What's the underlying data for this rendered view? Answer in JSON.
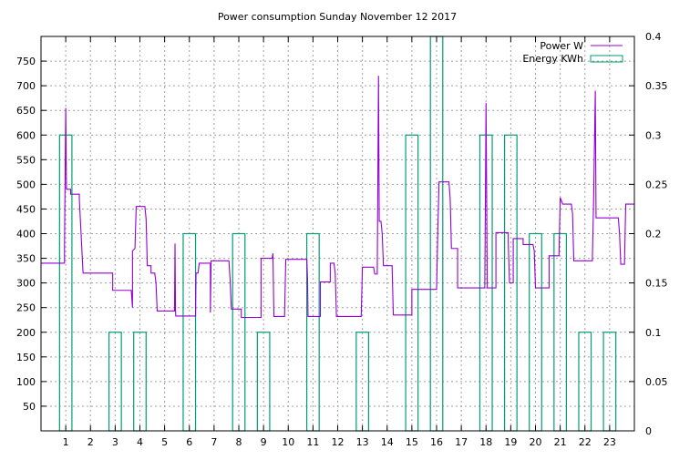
{
  "colors": {
    "power": "#9400d3",
    "energy": "#009e73",
    "grid": "#a0a0a0",
    "frame": "#000000",
    "background": "#ffffff"
  },
  "chart_data": {
    "type": "line",
    "title": "Power consumption Sunday November 12 2017",
    "xlabel": "",
    "ylabel": "",
    "y2label": "",
    "xlim": [
      0,
      24
    ],
    "ylim": [
      0,
      800
    ],
    "y2lim": [
      0,
      0.4
    ],
    "grid": true,
    "legend_position": "top-right",
    "x_ticks": [
      "1",
      "2",
      "3",
      "4",
      "5",
      "6",
      "7",
      "8",
      "9",
      "10",
      "11",
      "12",
      "13",
      "14",
      "15",
      "16",
      "17",
      "18",
      "19",
      "20",
      "21",
      "22",
      "23"
    ],
    "y_ticks": [
      "50",
      "100",
      "150",
      "200",
      "250",
      "300",
      "350",
      "400",
      "450",
      "500",
      "550",
      "600",
      "650",
      "700",
      "750"
    ],
    "y2_ticks": [
      "0",
      "0.05",
      "0.1",
      "0.15",
      "0.2",
      "0.25",
      "0.3",
      "0.35",
      "0.4"
    ],
    "series": [
      {
        "name": "Power W",
        "axis": "y",
        "style": "line",
        "points": [
          [
            0,
            340
          ],
          [
            0.95,
            340
          ],
          [
            0.95,
            375
          ],
          [
            1.0,
            655
          ],
          [
            1.03,
            490
          ],
          [
            1.2,
            490
          ],
          [
            1.2,
            480
          ],
          [
            1.55,
            480
          ],
          [
            1.55,
            470
          ],
          [
            1.7,
            320
          ],
          [
            2.9,
            320
          ],
          [
            2.9,
            285
          ],
          [
            3.65,
            285
          ],
          [
            3.7,
            250
          ],
          [
            3.7,
            365
          ],
          [
            3.8,
            370
          ],
          [
            3.85,
            455
          ],
          [
            4.2,
            455
          ],
          [
            4.25,
            430
          ],
          [
            4.3,
            335
          ],
          [
            4.45,
            335
          ],
          [
            4.45,
            320
          ],
          [
            4.6,
            320
          ],
          [
            4.65,
            300
          ],
          [
            4.7,
            243
          ],
          [
            5.4,
            243
          ],
          [
            5.42,
            380
          ],
          [
            5.44,
            245
          ],
          [
            5.45,
            233
          ],
          [
            6.25,
            233
          ],
          [
            6.27,
            320
          ],
          [
            6.35,
            320
          ],
          [
            6.4,
            340
          ],
          [
            6.85,
            340
          ],
          [
            6.85,
            240
          ],
          [
            6.88,
            345
          ],
          [
            7.6,
            345
          ],
          [
            7.65,
            305
          ],
          [
            7.7,
            247
          ],
          [
            8.1,
            247
          ],
          [
            8.1,
            230
          ],
          [
            8.9,
            230
          ],
          [
            8.9,
            350
          ],
          [
            9.35,
            350
          ],
          [
            9.38,
            360
          ],
          [
            9.42,
            232
          ],
          [
            9.85,
            232
          ],
          [
            9.9,
            348
          ],
          [
            10.75,
            348
          ],
          [
            10.78,
            310
          ],
          [
            10.8,
            232
          ],
          [
            11.3,
            232
          ],
          [
            11.3,
            302
          ],
          [
            11.7,
            302
          ],
          [
            11.7,
            340
          ],
          [
            11.85,
            340
          ],
          [
            11.9,
            320
          ],
          [
            11.95,
            232
          ],
          [
            12.95,
            232
          ],
          [
            13.0,
            332
          ],
          [
            13.45,
            332
          ],
          [
            13.5,
            318
          ],
          [
            13.6,
            318
          ],
          [
            13.65,
            720
          ],
          [
            13.68,
            425
          ],
          [
            13.75,
            425
          ],
          [
            13.8,
            400
          ],
          [
            13.85,
            335
          ],
          [
            14.2,
            335
          ],
          [
            14.25,
            235
          ],
          [
            15.0,
            235
          ],
          [
            15.0,
            287
          ],
          [
            16.0,
            287
          ],
          [
            16.05,
            410
          ],
          [
            16.1,
            505
          ],
          [
            16.5,
            505
          ],
          [
            16.55,
            470
          ],
          [
            16.6,
            370
          ],
          [
            16.85,
            370
          ],
          [
            16.85,
            290
          ],
          [
            17.95,
            290
          ],
          [
            18.0,
            665
          ],
          [
            18.05,
            290
          ],
          [
            18.4,
            290
          ],
          [
            18.4,
            402
          ],
          [
            18.9,
            402
          ],
          [
            18.9,
            380
          ],
          [
            18.95,
            300
          ],
          [
            19.1,
            300
          ],
          [
            19.1,
            390
          ],
          [
            19.5,
            390
          ],
          [
            19.5,
            378
          ],
          [
            19.9,
            378
          ],
          [
            19.95,
            365
          ],
          [
            20.0,
            290
          ],
          [
            20.55,
            290
          ],
          [
            20.55,
            355
          ],
          [
            20.95,
            355
          ],
          [
            21.0,
            473
          ],
          [
            21.1,
            460
          ],
          [
            21.45,
            460
          ],
          [
            21.5,
            440
          ],
          [
            21.55,
            345
          ],
          [
            22.3,
            345
          ],
          [
            22.35,
            465
          ],
          [
            22.42,
            690
          ],
          [
            22.45,
            432
          ],
          [
            23.35,
            432
          ],
          [
            23.4,
            400
          ],
          [
            23.45,
            338
          ],
          [
            23.6,
            338
          ],
          [
            23.65,
            460
          ],
          [
            24,
            460
          ]
        ]
      },
      {
        "name": "Energy KWh",
        "axis": "y2",
        "style": "steps",
        "x": [
          1,
          2,
          3,
          4,
          5,
          6,
          7,
          8,
          9,
          10,
          11,
          12,
          13,
          14,
          15,
          16,
          17,
          18,
          19,
          20,
          21,
          22,
          23
        ],
        "values": [
          0.3,
          0.0,
          0.1,
          0.1,
          0.0,
          0.2,
          0.0,
          0.2,
          0.1,
          0.0,
          0.2,
          0.0,
          0.1,
          0.0,
          0.3,
          0.4,
          0.0,
          0.3,
          0.3,
          0.2,
          0.2,
          0.1,
          0.1
        ]
      }
    ]
  }
}
